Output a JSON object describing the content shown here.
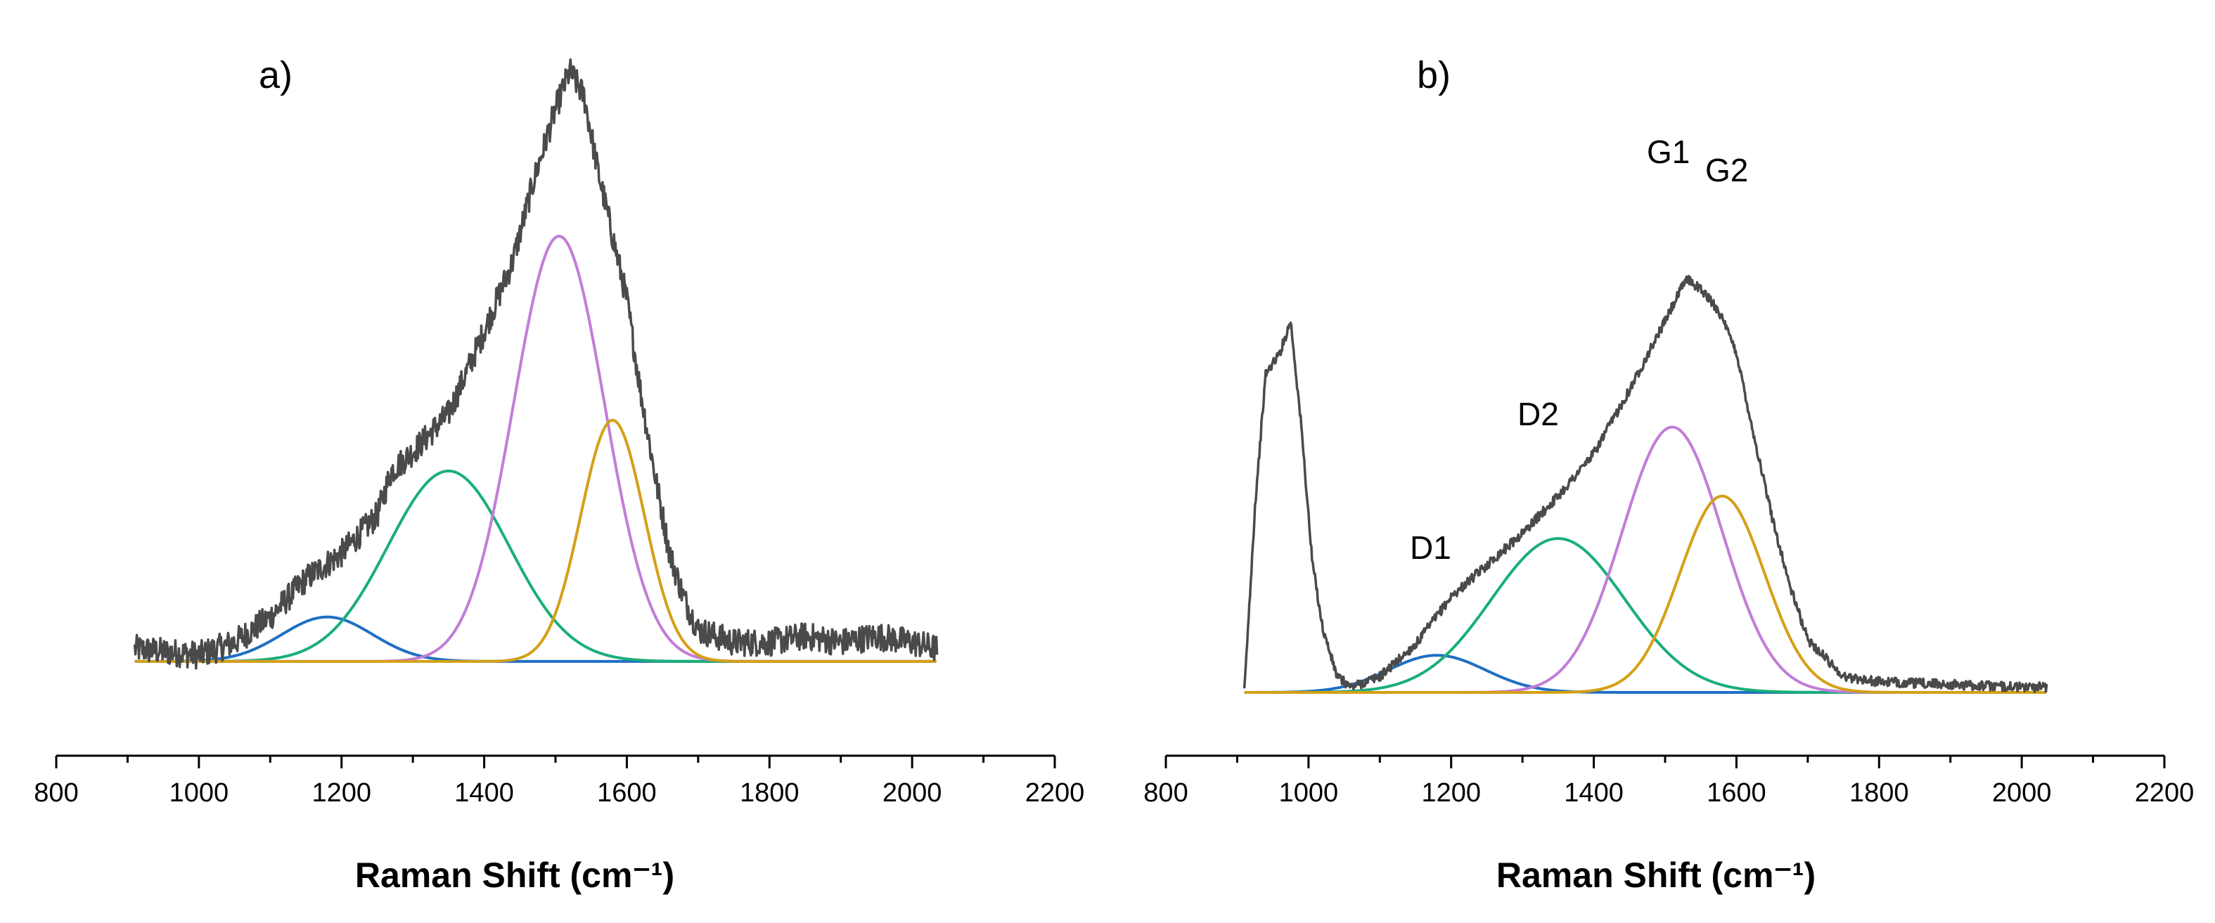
{
  "chart_data": [
    {
      "type": "line",
      "panel_label": "a)",
      "xlabel": "Raman Shift (cm⁻¹)",
      "xlim": [
        800,
        2200
      ],
      "xticks": [
        800,
        1000,
        1200,
        1400,
        1600,
        1800,
        2000,
        2200
      ],
      "ylim": [
        0,
        100
      ],
      "y_axis_visible": false,
      "grid": false,
      "spectrum_range": [
        910,
        2035
      ],
      "baseline": 3,
      "spectrum_anchors": [
        [
          910,
          5
        ],
        [
          1000,
          4
        ],
        [
          1050,
          6
        ],
        [
          1100,
          10
        ],
        [
          1150,
          16
        ],
        [
          1200,
          20
        ],
        [
          1250,
          26
        ],
        [
          1270,
          33
        ],
        [
          1300,
          36
        ],
        [
          1350,
          42
        ],
        [
          1400,
          55
        ],
        [
          1440,
          66
        ],
        [
          1470,
          79
        ],
        [
          1500,
          90
        ],
        [
          1520,
          96
        ],
        [
          1540,
          92
        ],
        [
          1560,
          80
        ],
        [
          1580,
          70
        ],
        [
          1600,
          60
        ],
        [
          1620,
          45
        ],
        [
          1640,
          32
        ],
        [
          1660,
          20
        ],
        [
          1680,
          13
        ],
        [
          1700,
          8
        ],
        [
          1750,
          6
        ],
        [
          1800,
          6
        ],
        [
          1850,
          7
        ],
        [
          1900,
          6
        ],
        [
          1950,
          7
        ],
        [
          2000,
          6
        ],
        [
          2035,
          5
        ]
      ],
      "components": [
        {
          "name": "",
          "color": "#1f6fc4",
          "center": 1180,
          "height": 7,
          "fwhm": 150
        },
        {
          "name": "",
          "color": "#1aae7a",
          "center": 1350,
          "height": 30,
          "fwhm": 200
        },
        {
          "name": "",
          "color": "#c27dd6",
          "center": 1505,
          "height": 67,
          "fwhm": 150
        },
        {
          "name": "",
          "color": "#d4a017",
          "center": 1580,
          "height": 38,
          "fwhm": 105
        }
      ]
    },
    {
      "type": "line",
      "panel_label": "b)",
      "xlabel": "Raman Shift (cm⁻¹)",
      "xlim": [
        800,
        2200
      ],
      "xticks": [
        800,
        1000,
        1200,
        1400,
        1600,
        1800,
        2000,
        2200
      ],
      "ylim": [
        0,
        100
      ],
      "y_axis_visible": false,
      "grid": false,
      "spectrum_range": [
        910,
        2035
      ],
      "baseline": 0,
      "spectrum_anchors": [
        [
          910,
          0
        ],
        [
          925,
          35
        ],
        [
          940,
          60
        ],
        [
          960,
          64
        ],
        [
          975,
          70
        ],
        [
          990,
          50
        ],
        [
          1005,
          25
        ],
        [
          1020,
          12
        ],
        [
          1040,
          3
        ],
        [
          1060,
          1
        ],
        [
          1100,
          3
        ],
        [
          1150,
          9
        ],
        [
          1200,
          18
        ],
        [
          1250,
          24
        ],
        [
          1300,
          30
        ],
        [
          1350,
          37
        ],
        [
          1400,
          45
        ],
        [
          1450,
          57
        ],
        [
          1500,
          70
        ],
        [
          1530,
          78
        ],
        [
          1550,
          76
        ],
        [
          1575,
          72
        ],
        [
          1600,
          64
        ],
        [
          1625,
          48
        ],
        [
          1650,
          33
        ],
        [
          1675,
          20
        ],
        [
          1700,
          10
        ],
        [
          1750,
          3
        ],
        [
          1800,
          2
        ],
        [
          1900,
          1.5
        ],
        [
          2000,
          1
        ],
        [
          2035,
          1
        ]
      ],
      "components": [
        {
          "name": "D1",
          "color": "#1f6fc4",
          "center": 1180,
          "height": 7,
          "fwhm": 160
        },
        {
          "name": "D2",
          "color": "#1aae7a",
          "center": 1350,
          "height": 29,
          "fwhm": 220
        },
        {
          "name": "G1",
          "color": "#c27dd6",
          "center": 1510,
          "height": 50,
          "fwhm": 165
        },
        {
          "name": "G2",
          "color": "#d4a017",
          "center": 1580,
          "height": 37,
          "fwhm": 140
        }
      ]
    }
  ]
}
